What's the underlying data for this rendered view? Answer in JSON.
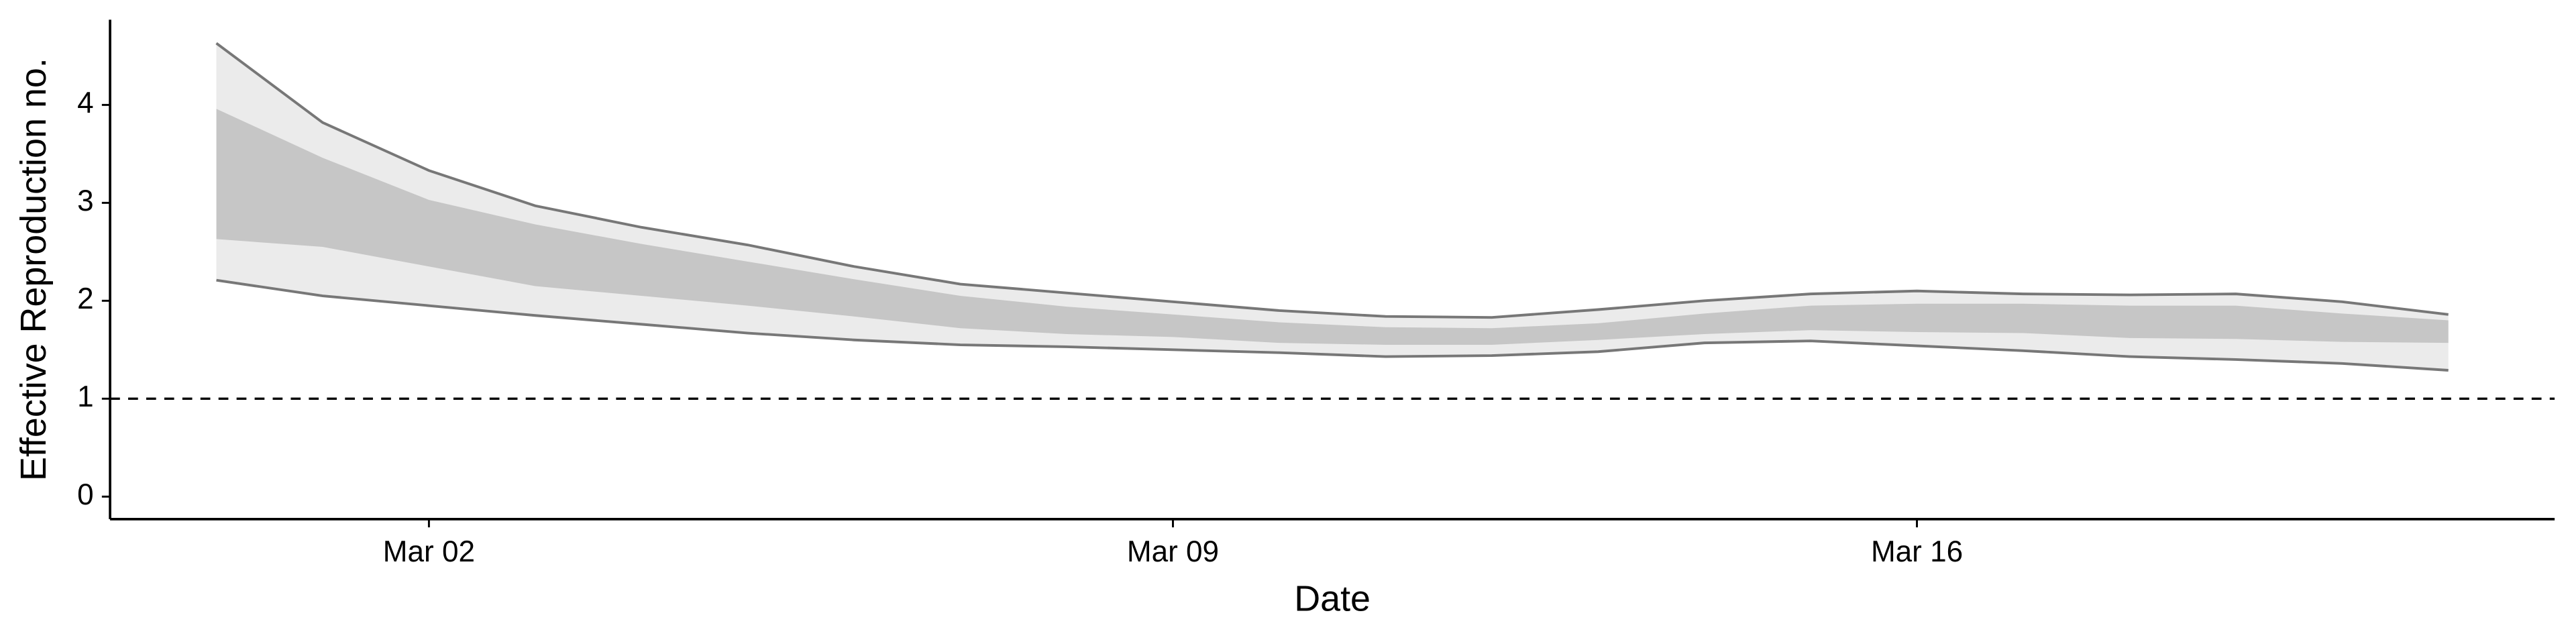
{
  "chart_data": {
    "type": "band",
    "x_label": "Date",
    "y_label": "Effective Reproduction no.",
    "x": [
      "Feb 29",
      "Mar 01",
      "Mar 02",
      "Mar 03",
      "Mar 04",
      "Mar 05",
      "Mar 06",
      "Mar 07",
      "Mar 08",
      "Mar 09",
      "Mar 10",
      "Mar 11",
      "Mar 12",
      "Mar 13",
      "Mar 14",
      "Mar 15",
      "Mar 16",
      "Mar 17",
      "Mar 18",
      "Mar 19",
      "Mar 20",
      "Mar 21"
    ],
    "xlim": [
      "Feb 28",
      "Mar 22"
    ],
    "xticks": [
      "Mar 02",
      "Mar 09",
      "Mar 16"
    ],
    "ylim": [
      -0.23,
      4.87
    ],
    "yticks": [
      0,
      1,
      2,
      3,
      4
    ],
    "hline": 1,
    "series": [
      {
        "color": "#ebebeb",
        "line_color": "#777777",
        "upper": [
          4.63,
          3.82,
          3.33,
          2.97,
          2.75,
          2.57,
          2.35,
          2.17,
          2.08,
          1.99,
          1.9,
          1.84,
          1.83,
          1.91,
          2.0,
          2.07,
          2.1,
          2.07,
          2.06,
          2.07,
          1.99,
          1.86
        ],
        "lower": [
          2.21,
          2.05,
          1.95,
          1.85,
          1.76,
          1.67,
          1.6,
          1.55,
          1.53,
          1.5,
          1.47,
          1.43,
          1.44,
          1.48,
          1.57,
          1.59,
          1.54,
          1.49,
          1.43,
          1.4,
          1.36,
          1.29
        ]
      },
      {
        "color": "#c6c6c6",
        "upper": [
          3.96,
          3.46,
          3.03,
          2.78,
          2.58,
          2.4,
          2.22,
          2.05,
          1.94,
          1.86,
          1.78,
          1.73,
          1.72,
          1.77,
          1.87,
          1.95,
          1.97,
          1.97,
          1.95,
          1.95,
          1.87,
          1.8
        ],
        "lower": [
          2.63,
          2.55,
          2.35,
          2.15,
          2.05,
          1.95,
          1.84,
          1.72,
          1.66,
          1.63,
          1.57,
          1.55,
          1.55,
          1.6,
          1.66,
          1.7,
          1.68,
          1.67,
          1.62,
          1.61,
          1.58,
          1.57
        ]
      }
    ]
  }
}
